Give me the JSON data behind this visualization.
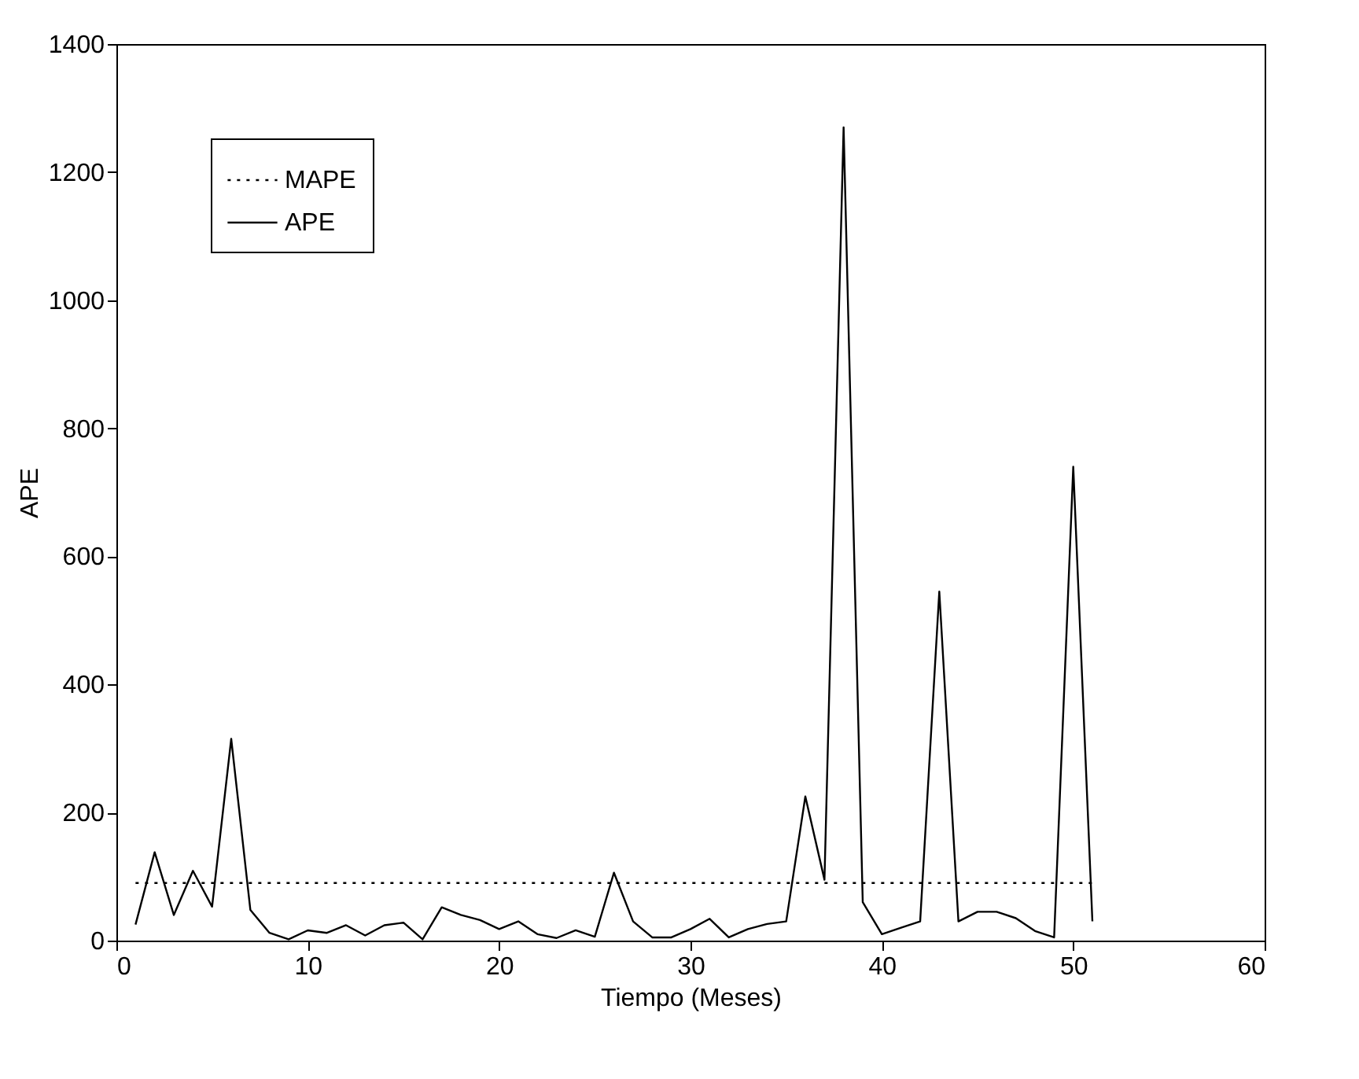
{
  "chart_data": {
    "type": "line",
    "xlabel": "Tiempo (Meses)",
    "ylabel": "APE",
    "xlim": [
      0,
      60
    ],
    "xticks": [
      0,
      10,
      20,
      30,
      40,
      50,
      60
    ],
    "ylim": [
      0,
      1400
    ],
    "yticks": [
      0,
      200,
      400,
      600,
      800,
      1000,
      1200,
      1400
    ],
    "grid": false,
    "legend": "top left",
    "marker": "none",
    "series": [
      {
        "name": "MAPE",
        "color": "#000000",
        "line_style": "dotted",
        "x": [
          1,
          51
        ],
        "values": [
          90,
          90
        ]
      },
      {
        "name": "APE",
        "color": "#000000",
        "line_style": "solid",
        "x": [
          1,
          2,
          3,
          4,
          5,
          6,
          7,
          8,
          9,
          10,
          11,
          12,
          13,
          14,
          15,
          16,
          17,
          18,
          19,
          20,
          21,
          22,
          23,
          24,
          25,
          26,
          27,
          28,
          29,
          30,
          31,
          32,
          33,
          34,
          35,
          36,
          37,
          38,
          39,
          40,
          41,
          42,
          43,
          44,
          45,
          46,
          47,
          48,
          49,
          50,
          51
        ],
        "values": [
          25,
          138,
          40,
          109,
          53,
          315,
          48,
          12,
          2,
          16,
          12,
          24,
          8,
          24,
          28,
          2,
          52,
          40,
          32,
          18,
          30,
          10,
          4,
          16,
          6,
          106,
          30,
          5,
          5,
          18,
          34,
          5,
          18,
          26,
          30,
          225,
          95,
          1270,
          60,
          10,
          20,
          30,
          545,
          30,
          45,
          45,
          35,
          15,
          5,
          740,
          30
        ]
      }
    ]
  }
}
